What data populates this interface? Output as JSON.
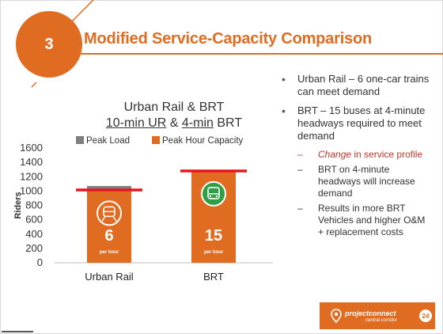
{
  "slide": {
    "number": "3",
    "title": "Modified Service-Capacity Comparison",
    "page_number": "24",
    "brand": "projectconnect",
    "brand_sub": "central corridor"
  },
  "chart_data": {
    "type": "bar",
    "title_line1": "Urban Rail & BRT",
    "title_line2_parts": [
      "10-min UR",
      " & ",
      "4-min",
      " BRT"
    ],
    "categories": [
      "Urban Rail",
      "BRT"
    ],
    "series": [
      {
        "name": "Peak Load",
        "values": [
          1070,
          1280
        ],
        "color": "#7f7f7f"
      },
      {
        "name": "Peak Hour Capacity",
        "values": [
          1000,
          1270
        ],
        "color": "#e06c22"
      }
    ],
    "ylabel": "Riders",
    "ylim": [
      0,
      1600
    ],
    "yticks": [
      0,
      200,
      400,
      600,
      800,
      1000,
      1200,
      1400,
      1600
    ],
    "bar_labels": [
      {
        "value": "6",
        "unit": "per hour",
        "icon": "train-icon"
      },
      {
        "value": "15",
        "unit": "per hour",
        "icon": "bus-icon"
      }
    ],
    "red_lines": [
      1015,
      1280
    ],
    "legend_position": "top",
    "grid": false
  },
  "bullets": [
    {
      "text": "Urban Rail – 6 one-car trains can meet demand"
    },
    {
      "text": "BRT – 15 buses at 4-minute headways required to meet demand"
    }
  ],
  "sub_bullets": [
    {
      "lead": "Change",
      "rest": " in service profile",
      "color": "#c0392b"
    },
    {
      "text": "BRT on 4-minute headways will increase demand"
    },
    {
      "text": "Results in more BRT Vehicles and higher O&M + replacement costs"
    }
  ]
}
